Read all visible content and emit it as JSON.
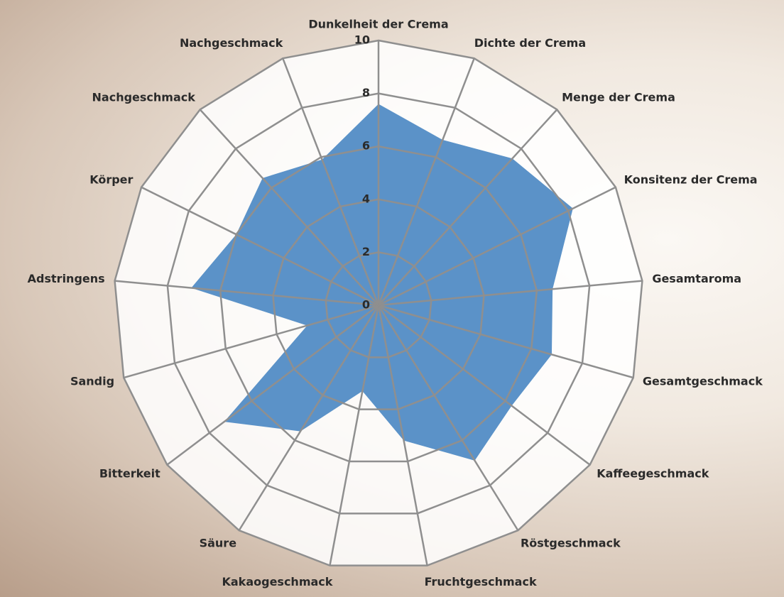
{
  "chart_data": {
    "type": "radar",
    "categories": [
      "Dunkelheit der Crema",
      "Dichte der Crema",
      "Menge der Crema",
      "Konsitenz der Crema",
      "Gesamtaroma",
      "Gesamtgeschmack",
      "Kaffeegeschmack",
      "Röstgeschmack",
      "Fruchtgeschmack",
      "Kakaogeschmack",
      "Säure",
      "Bitterkeit",
      "Sandig",
      "Adstringens",
      "Körper",
      "Nachgeschmack",
      "Nachgeschmack"
    ],
    "values": [
      7.6,
      6.7,
      7.5,
      8.2,
      6.6,
      6.8,
      6.3,
      6.9,
      5.2,
      3.3,
      5.6,
      7.3,
      2.8,
      7.1,
      6.0,
      6.5,
      5.9
    ],
    "color": "#5b92c8",
    "rlim": [
      0,
      10
    ],
    "rticks": [
      0,
      2,
      4,
      6,
      8,
      10
    ],
    "grid": true
  }
}
